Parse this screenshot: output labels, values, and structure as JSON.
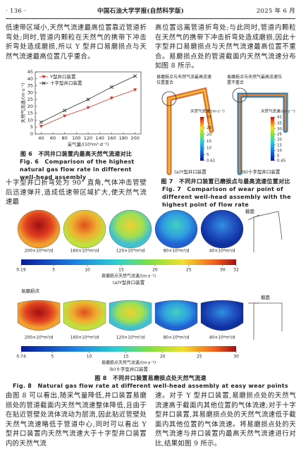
{
  "header": {
    "page": "· 136 ·",
    "journal": "中国石油大学学报(自然科学版)",
    "date": "2025 年 6 月"
  },
  "body": {
    "left_top": "低速带区域小,天然气流速最高位置靠近管道折弯处;同时,管道内颗粒在天然气的携带下冲击折弯处造成磨损,所以 Y 型井口易磨损点与天然气流速最高位置几乎重合。",
    "left_mid": "十字型井口折弯处为 90° 直角,气体冲击管壁后迅速弹开,造成低速带区域扩大,使天然气流速最",
    "right_top": "高位置远离管道折弯处;与此同时,管道内颗粒在天然气的携带下冲击折弯处造成磨损,因此十字型井口易磨损点与天然气流速最高位置不重合。易磨损点处的管道截面内天然气流速分布如图 8 所示。",
    "bottom_left": "由图 8 可以看出,随采气量降低,井口装置易磨损处的管道截面内天然气流速整体降低,且由于在贴近管壁处流体流动为层流,因此贴近管壁处天然气流速略低于管道中心,同时可以看出 Y 型井口装置内天然气流速大于十字型井口装置内的天然气流",
    "bottom_right": "速。对于 Y 型井口装置,易磨损点处的天然气流速高于截面内其他位置的气体流速;对于十字型井口装置,其易磨损点处的天然气流速低于截面内其他位置的气体流速。将易磨损点处的天然气流速与井口装置内最高天然气流速进行对比,结果如图 9 所示。"
  },
  "fig6": {
    "chart_data": {
      "type": "line",
      "ylabel": "天然气流速/(m·s⁻¹)",
      "xlabel": "采气量/(10⁴m³·d⁻¹)",
      "x": [
        40,
        80,
        120,
        160,
        200
      ],
      "series": [
        {
          "name": "Y型井口装置",
          "color": "#e0302a",
          "marker": "triangle-down",
          "values": [
            5.5,
            13,
            19,
            26,
            32
          ]
        },
        {
          "name": "十字型井口装置",
          "color": "#333333",
          "marker": "x",
          "values": [
            8.5,
            17,
            25,
            34,
            42
          ]
        }
      ],
      "xlim": [
        30,
        210
      ],
      "ylim": [
        0,
        45
      ],
      "xticks": [
        40,
        60,
        80,
        100,
        120,
        140,
        160,
        180,
        200
      ],
      "yticks": [
        0,
        5,
        10,
        15,
        20,
        25,
        30,
        35,
        40,
        45
      ],
      "legend": "upper-left"
    },
    "caption_cn": "图 6　不同井口装置内最高天然气流速对比",
    "caption_en": "Fig. 6　Comparison of the highest natural gas flow rate in different well-head assembly"
  },
  "fig7": {
    "panels": [
      {
        "note": "易磨损点与天然气流最高流速位置重合",
        "ylabel": "天然气流速/(m·s⁻¹)",
        "ticks": [
          33,
          25,
          20,
          15,
          10,
          5,
          0.61
        ],
        "label": "(a)Y型井口装置"
      },
      {
        "note": "易磨损点与天然气最高流速位置不重合",
        "ylabel": "天然气流速/(m·s⁻¹)",
        "ticks": [
          41,
          35,
          30,
          25,
          20,
          15,
          10,
          5,
          0.45
        ],
        "label": "(b)十字型井口装置"
      }
    ],
    "caption_cn": "图 7　不同井口装置已磨损点与最高流速位置对比",
    "caption_en": "Fig. 7　Comparison of wear point of different well-head assembly with the highest point of flow rate"
  },
  "fig8": {
    "rates": [
      "200×10⁴m³/d",
      "160×10⁴m³/d",
      "120×10⁴m³/d",
      "80×10⁴m³/d",
      "40×10⁴m³/d"
    ],
    "section_label": "截面",
    "wear_label": "易磨损点",
    "panels": [
      {
        "ticks": [
          0.19,
          5,
          10,
          15,
          20,
          25,
          30,
          32
        ],
        "axis_label": "易磨损点天然气流速/(m·s⁻¹)",
        "label": "(a)Y型井口装置"
      },
      {
        "ticks": [
          0.74,
          5,
          10,
          15,
          20,
          25,
          30
        ],
        "axis_label": "易磨损点天然气流速/(m·s⁻¹)",
        "label": "(b)十字型井口装置"
      }
    ],
    "caption_cn": "图 8　不同井口装置易磨损点处天然气流速",
    "caption_en": "Fig. 8　Natural gas flow rate at different well-head assembly at easy wear points"
  }
}
